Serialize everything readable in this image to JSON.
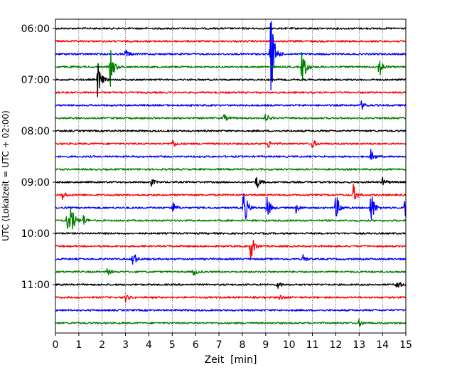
{
  "chart_data": {
    "type": "line",
    "title": "",
    "xlabel": "Zeit  [min]",
    "ylabel": "UTC (Lokalzeit = UTC + 02:00)",
    "xlim": [
      0,
      15
    ],
    "xticks": [
      0,
      1,
      2,
      3,
      4,
      5,
      6,
      7,
      8,
      9,
      10,
      11,
      12,
      13,
      14,
      15
    ],
    "x_grid": true,
    "y_tick_labels": [
      "06:00",
      "07:00",
      "08:00",
      "09:00",
      "10:00",
      "11:00"
    ],
    "trace_interval_minutes": 15,
    "first_trace": "06:00",
    "trace_colors": [
      "#000000",
      "#ff0000",
      "#0000ff",
      "#008000"
    ],
    "traces": [
      {
        "start": "06:00",
        "events": []
      },
      {
        "start": "06:15",
        "events": []
      },
      {
        "start": "06:30",
        "events": [
          {
            "x": 9.2,
            "amp": 4.3
          },
          {
            "x": 3.0,
            "amp": 0.4
          }
        ]
      },
      {
        "start": "06:45",
        "events": [
          {
            "x": 2.35,
            "amp": 1.5
          },
          {
            "x": 10.55,
            "amp": 1.7
          },
          {
            "x": 13.85,
            "amp": 0.9
          }
        ]
      },
      {
        "start": "07:00",
        "events": [
          {
            "x": 1.8,
            "amp": 1.6
          }
        ]
      },
      {
        "start": "07:15",
        "events": []
      },
      {
        "start": "07:30",
        "events": [
          {
            "x": 13.1,
            "amp": 0.35
          }
        ]
      },
      {
        "start": "07:45",
        "events": [
          {
            "x": 9.0,
            "amp": 0.4
          },
          {
            "x": 7.2,
            "amp": 0.3
          }
        ]
      },
      {
        "start": "08:00",
        "events": []
      },
      {
        "start": "08:15",
        "events": [
          {
            "x": 5.0,
            "amp": 0.35
          },
          {
            "x": 9.1,
            "amp": 0.35
          },
          {
            "x": 11.0,
            "amp": 0.35
          }
        ]
      },
      {
        "start": "08:30",
        "events": [
          {
            "x": 13.5,
            "amp": 0.5
          }
        ]
      },
      {
        "start": "08:45",
        "events": []
      },
      {
        "start": "09:00",
        "events": [
          {
            "x": 8.6,
            "amp": 0.6
          },
          {
            "x": 4.1,
            "amp": 0.3
          },
          {
            "x": 14.0,
            "amp": 0.35
          }
        ]
      },
      {
        "start": "09:15",
        "events": [
          {
            "x": 12.75,
            "amp": 0.8
          },
          {
            "x": 0.3,
            "amp": 0.35
          }
        ]
      },
      {
        "start": "09:30",
        "events": [
          {
            "x": 8.05,
            "amp": 1.8
          },
          {
            "x": 9.05,
            "amp": 1.0
          },
          {
            "x": 12.0,
            "amp": 1.2
          },
          {
            "x": 13.5,
            "amp": 1.5
          },
          {
            "x": 14.95,
            "amp": 1.2
          },
          {
            "x": 5.0,
            "amp": 0.5
          },
          {
            "x": 10.3,
            "amp": 0.4
          }
        ]
      },
      {
        "start": "09:45",
        "events": [
          {
            "x": 0.65,
            "amp": 1.4
          },
          {
            "x": 0.5,
            "amp": 0.8
          },
          {
            "x": 1.2,
            "amp": 0.4
          }
        ]
      },
      {
        "start": "10:00",
        "events": []
      },
      {
        "start": "10:15",
        "events": [
          {
            "x": 8.35,
            "amp": 1.2
          }
        ]
      },
      {
        "start": "10:30",
        "events": [
          {
            "x": 3.3,
            "amp": 0.8
          },
          {
            "x": 10.6,
            "amp": 0.35
          }
        ]
      },
      {
        "start": "10:45",
        "events": [
          {
            "x": 2.2,
            "amp": 0.3
          },
          {
            "x": 5.9,
            "amp": 0.3
          }
        ]
      },
      {
        "start": "11:00",
        "events": [
          {
            "x": 14.6,
            "amp": 0.5
          },
          {
            "x": 9.5,
            "amp": 0.3
          }
        ]
      },
      {
        "start": "11:15",
        "events": [
          {
            "x": 3.0,
            "amp": 0.3
          },
          {
            "x": 9.6,
            "amp": 0.25
          }
        ]
      },
      {
        "start": "11:30",
        "events": []
      },
      {
        "start": "11:45",
        "events": [
          {
            "x": 13.0,
            "amp": 0.3
          }
        ]
      }
    ]
  }
}
